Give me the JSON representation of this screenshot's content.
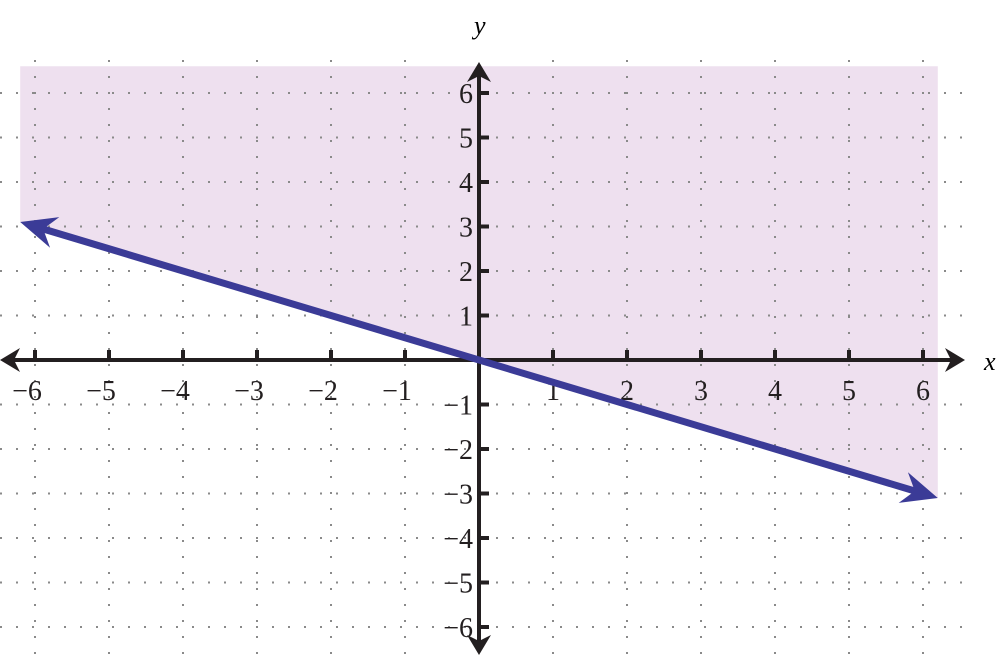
{
  "chart_data": {
    "type": "line",
    "xlabel": "x",
    "ylabel": "y",
    "xlim": [
      -6.2,
      6.2
    ],
    "ylim": [
      -6.6,
      6.6
    ],
    "xticks": [
      -6,
      -5,
      -4,
      -3,
      -2,
      -1,
      1,
      2,
      3,
      4,
      5,
      6
    ],
    "yticks": [
      -6,
      -5,
      -4,
      -3,
      -2,
      -1,
      1,
      2,
      3,
      4,
      5,
      6
    ],
    "grid": true,
    "series": [
      {
        "x": [
          -6.2,
          6.2
        ],
        "y": [
          3.1,
          -3.1
        ],
        "color": "#3b3b97",
        "arrows": "both"
      }
    ],
    "shaded_region": {
      "bounded_below_by_line": true,
      "x_range": [
        -6.2,
        6.2
      ],
      "y_top": 6.6,
      "color": "#eee0ef"
    },
    "axis_color": "#231f20",
    "grid_color": "#8a8a8a"
  }
}
